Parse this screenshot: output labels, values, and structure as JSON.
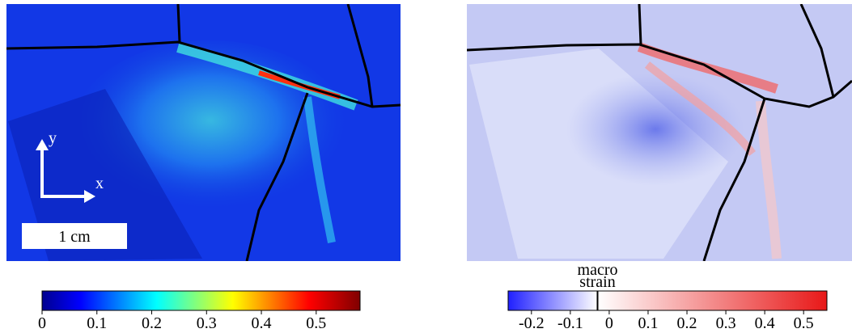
{
  "panels": [
    {
      "axis_labels": {
        "x": "x",
        "y": "y"
      },
      "scale_bar": "1 cm"
    },
    {}
  ],
  "colorbars": [
    {
      "range": [
        0,
        0.58
      ],
      "ticks": [
        0,
        0.1,
        0.2,
        0.3,
        0.4,
        0.5
      ]
    },
    {
      "range": [
        -0.26,
        0.56
      ],
      "ticks": [
        -0.2,
        -0.1,
        0,
        0.1,
        0.2,
        0.3,
        0.4,
        0.5
      ],
      "marker": {
        "label_lines": [
          "macro",
          "strain"
        ],
        "value": -0.03
      }
    }
  ]
}
